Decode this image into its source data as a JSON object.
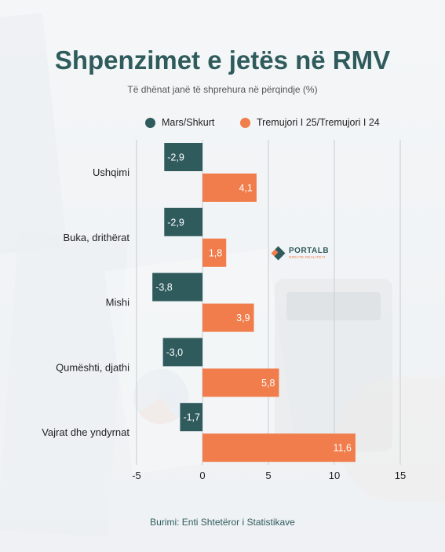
{
  "title": "Shpenzimet e jetës në RMV",
  "subtitle": "Të dhënat janë të shprehura në përqindje (%)",
  "source": "Burimi: Enti Shtetëror i Statistikave",
  "logo": {
    "text_main": "PORTALB",
    "text_sub": "DREJTE REALITETI",
    "colors": [
      "#2f5b5d",
      "#ef7c4a"
    ]
  },
  "colors": {
    "series_1": "#2f5b5d",
    "series_2": "#f07d4b",
    "title": "#2f5b5d",
    "grid": "#c8ccd0"
  },
  "chart_data": {
    "type": "bar",
    "orientation": "horizontal",
    "categories": [
      "Ushqimi",
      "Buka, drithërat",
      "Mishi",
      "Qumështi, djathi",
      "Vajrat dhe yndyrnat"
    ],
    "series": [
      {
        "name": "Mars/Shkurt",
        "values": [
          -2.9,
          -2.9,
          -3.8,
          -3.0,
          -1.7
        ],
        "labels": [
          "-2,9",
          "-2,9",
          "-3,8",
          "-3,0",
          "-1,7"
        ]
      },
      {
        "name": "Tremujori I 25/Tremujori I 24",
        "values": [
          4.1,
          1.8,
          3.9,
          5.8,
          11.6
        ],
        "labels": [
          "4,1",
          "1,8",
          "3,9",
          "5,8",
          "11,6"
        ]
      }
    ],
    "xlim": [
      -5,
      15
    ],
    "xticks": [
      -5,
      0,
      5,
      10,
      15
    ],
    "xtick_labels": [
      "-5",
      "0",
      "5",
      "10",
      "15"
    ],
    "grid": true,
    "legend_position": "top"
  }
}
